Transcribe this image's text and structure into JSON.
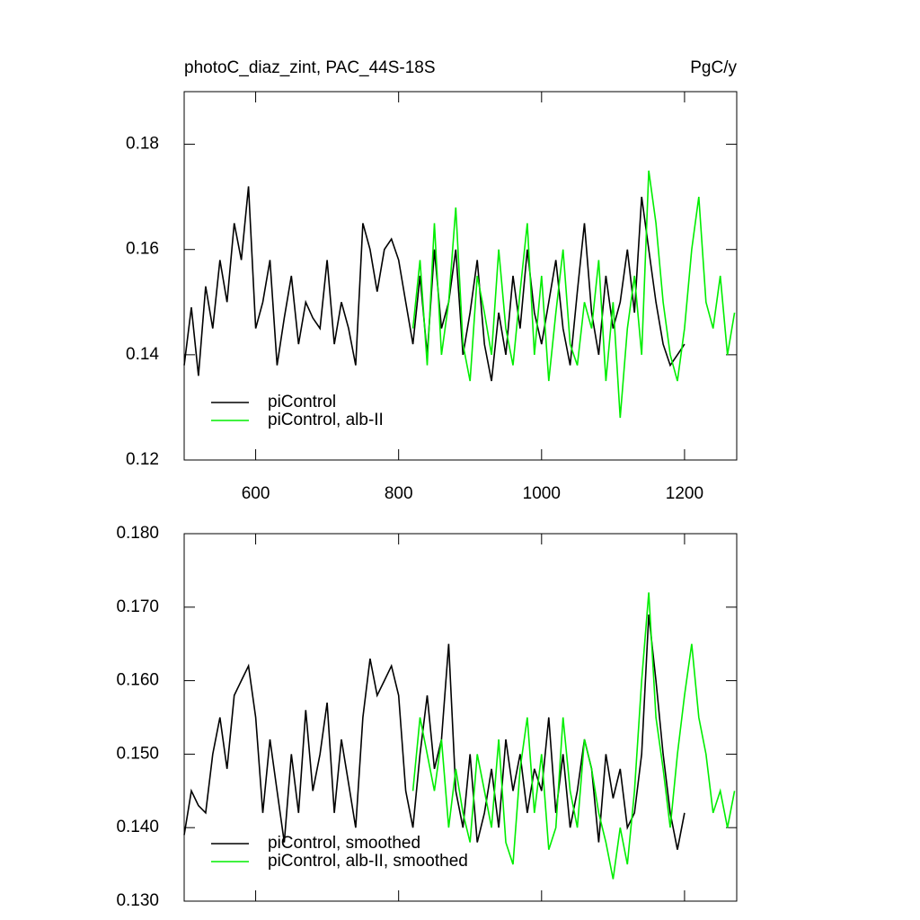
{
  "chart_data": [
    {
      "type": "line",
      "title": "photoC_diaz_zint, PAC_44S-18S",
      "units": "PgC/y",
      "xlim": [
        500,
        1273
      ],
      "xticks": [
        600,
        800,
        1000,
        1200
      ],
      "xtick_labels": true,
      "ylim": [
        0.12,
        0.19
      ],
      "yticks": [
        0.12,
        0.14,
        0.16,
        0.18
      ],
      "legend": "lower left",
      "series": [
        {
          "name": "piControl",
          "color": "#000000",
          "x": [
            500,
            510,
            520,
            530,
            540,
            550,
            560,
            570,
            580,
            590,
            600,
            610,
            620,
            630,
            640,
            650,
            660,
            670,
            680,
            690,
            700,
            710,
            720,
            730,
            740,
            750,
            760,
            770,
            780,
            790,
            800,
            810,
            820,
            830,
            840,
            850,
            860,
            870,
            880,
            890,
            900,
            910,
            920,
            930,
            940,
            950,
            960,
            970,
            980,
            990,
            1000,
            1010,
            1020,
            1030,
            1040,
            1050,
            1060,
            1070,
            1080,
            1090,
            1100,
            1110,
            1120,
            1130,
            1140,
            1150,
            1160,
            1170,
            1180,
            1190,
            1200
          ],
          "values": [
            0.138,
            0.149,
            0.136,
            0.153,
            0.145,
            0.158,
            0.15,
            0.165,
            0.158,
            0.172,
            0.145,
            0.15,
            0.158,
            0.138,
            0.147,
            0.155,
            0.142,
            0.15,
            0.147,
            0.145,
            0.158,
            0.142,
            0.15,
            0.145,
            0.138,
            0.165,
            0.16,
            0.152,
            0.16,
            0.162,
            0.158,
            0.15,
            0.142,
            0.155,
            0.14,
            0.16,
            0.145,
            0.15,
            0.16,
            0.14,
            0.148,
            0.158,
            0.142,
            0.135,
            0.148,
            0.14,
            0.155,
            0.145,
            0.16,
            0.148,
            0.142,
            0.15,
            0.158,
            0.145,
            0.138,
            0.152,
            0.165,
            0.148,
            0.14,
            0.155,
            0.145,
            0.15,
            0.16,
            0.148,
            0.17,
            0.16,
            0.15,
            0.142,
            0.138,
            0.14,
            0.142
          ]
        },
        {
          "name": "piControl, alb-II",
          "color": "#00ee00",
          "x": [
            820,
            830,
            840,
            850,
            860,
            870,
            880,
            890,
            900,
            910,
            920,
            930,
            940,
            950,
            960,
            970,
            980,
            990,
            1000,
            1010,
            1020,
            1030,
            1040,
            1050,
            1060,
            1070,
            1080,
            1090,
            1100,
            1110,
            1120,
            1130,
            1140,
            1150,
            1160,
            1170,
            1180,
            1190,
            1200,
            1210,
            1220,
            1230,
            1240,
            1250,
            1260,
            1270
          ],
          "values": [
            0.145,
            0.158,
            0.138,
            0.165,
            0.14,
            0.15,
            0.168,
            0.142,
            0.135,
            0.155,
            0.148,
            0.14,
            0.16,
            0.145,
            0.138,
            0.152,
            0.165,
            0.14,
            0.155,
            0.135,
            0.148,
            0.16,
            0.142,
            0.138,
            0.15,
            0.145,
            0.158,
            0.135,
            0.15,
            0.128,
            0.145,
            0.155,
            0.14,
            0.175,
            0.165,
            0.15,
            0.14,
            0.135,
            0.145,
            0.16,
            0.17,
            0.15,
            0.145,
            0.155,
            0.14,
            0.148
          ]
        }
      ]
    },
    {
      "type": "line",
      "xlim": [
        500,
        1273
      ],
      "xticks": [
        600,
        800,
        1000,
        1200
      ],
      "xtick_labels": false,
      "ylim": [
        0.13,
        0.18
      ],
      "yticks": [
        {
          "value": 0.13,
          "label": "0.130"
        },
        {
          "value": 0.14,
          "label": "0.140"
        },
        {
          "value": 0.15,
          "label": "0.150"
        },
        {
          "value": 0.16,
          "label": "0.160"
        },
        {
          "value": 0.17,
          "label": "0.170"
        },
        {
          "value": 0.18,
          "label": "0.180"
        }
      ],
      "legend": "lower left",
      "series": [
        {
          "name": "piControl, smoothed",
          "color": "#000000",
          "x": [
            500,
            510,
            520,
            530,
            540,
            550,
            560,
            570,
            580,
            590,
            600,
            610,
            620,
            630,
            640,
            650,
            660,
            670,
            680,
            690,
            700,
            710,
            720,
            730,
            740,
            750,
            760,
            770,
            780,
            790,
            800,
            810,
            820,
            830,
            840,
            850,
            860,
            870,
            880,
            890,
            900,
            910,
            920,
            930,
            940,
            950,
            960,
            970,
            980,
            990,
            1000,
            1010,
            1020,
            1030,
            1040,
            1050,
            1060,
            1070,
            1080,
            1090,
            1100,
            1110,
            1120,
            1130,
            1140,
            1150,
            1160,
            1170,
            1180,
            1190,
            1200
          ],
          "values": [
            0.139,
            0.145,
            0.143,
            0.142,
            0.15,
            0.155,
            0.148,
            0.158,
            0.16,
            0.162,
            0.155,
            0.142,
            0.152,
            0.145,
            0.138,
            0.15,
            0.142,
            0.156,
            0.145,
            0.15,
            0.157,
            0.142,
            0.152,
            0.146,
            0.14,
            0.155,
            0.163,
            0.158,
            0.16,
            0.162,
            0.158,
            0.145,
            0.14,
            0.15,
            0.158,
            0.148,
            0.152,
            0.165,
            0.145,
            0.14,
            0.15,
            0.138,
            0.142,
            0.148,
            0.14,
            0.152,
            0.145,
            0.15,
            0.142,
            0.148,
            0.145,
            0.155,
            0.142,
            0.15,
            0.14,
            0.145,
            0.152,
            0.148,
            0.138,
            0.15,
            0.144,
            0.148,
            0.14,
            0.142,
            0.15,
            0.169,
            0.16,
            0.15,
            0.142,
            0.137,
            0.142
          ]
        },
        {
          "name": "piControl, alb-II, smoothed",
          "color": "#00ee00",
          "x": [
            820,
            830,
            840,
            850,
            860,
            870,
            880,
            890,
            900,
            910,
            920,
            930,
            940,
            950,
            960,
            970,
            980,
            990,
            1000,
            1010,
            1020,
            1030,
            1040,
            1050,
            1060,
            1070,
            1080,
            1090,
            1100,
            1110,
            1120,
            1130,
            1140,
            1150,
            1160,
            1170,
            1180,
            1190,
            1200,
            1210,
            1220,
            1230,
            1240,
            1250,
            1260,
            1270
          ],
          "values": [
            0.145,
            0.155,
            0.15,
            0.145,
            0.152,
            0.14,
            0.148,
            0.142,
            0.138,
            0.15,
            0.145,
            0.14,
            0.152,
            0.138,
            0.135,
            0.148,
            0.155,
            0.142,
            0.15,
            0.137,
            0.14,
            0.155,
            0.145,
            0.14,
            0.152,
            0.148,
            0.142,
            0.138,
            0.133,
            0.14,
            0.135,
            0.145,
            0.16,
            0.172,
            0.155,
            0.148,
            0.14,
            0.15,
            0.158,
            0.165,
            0.155,
            0.15,
            0.142,
            0.145,
            0.14,
            0.145
          ]
        }
      ]
    }
  ]
}
